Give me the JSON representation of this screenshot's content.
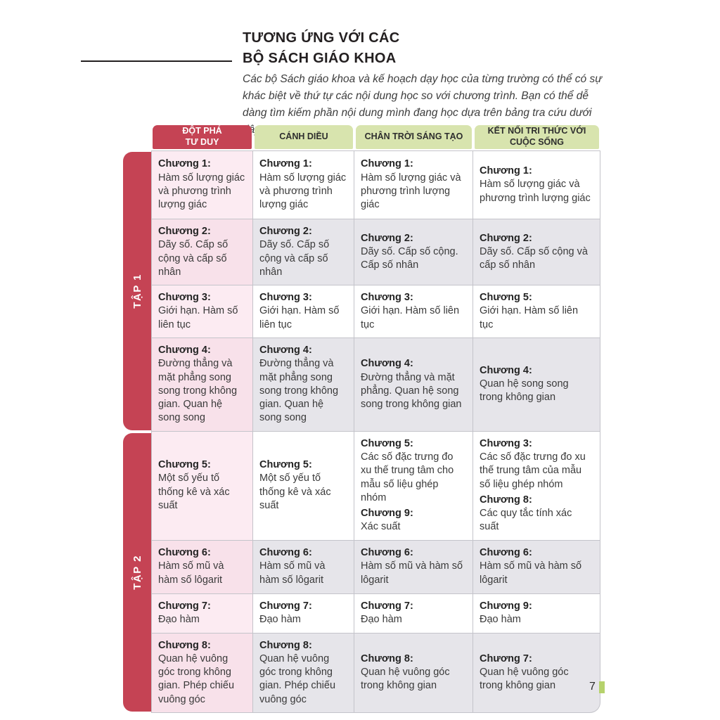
{
  "page": {
    "title": "TƯƠNG ỨNG VỚI CÁC\nBỘ SÁCH GIÁO KHOA",
    "intro": "Các bộ Sách giáo khoa và kế hoạch dạy học của từng trường có thể có sự khác biệt về thứ tự các nội dung học so với chương trình. Bạn có thể dễ dàng tìm kiếm phần nội dung mình đang học dựa trên bảng tra cứu dưới đây.",
    "page_number": "7"
  },
  "colors": {
    "accent_red": "#c54354",
    "header_green": "#d8e4ae",
    "cell_gray": "#e6e5ea",
    "cell_pink": "#f8e1ea",
    "cell_pink_light": "#fcebf2",
    "line": "#c4c4ca",
    "page_marker_green": "#b6d26c"
  },
  "table": {
    "columns": [
      {
        "id": "dot-pha-tu-duy",
        "label": "ĐỘT PHÁ\nTƯ DUY"
      },
      {
        "id": "canh-dieu",
        "label": "CÁNH DIỀU"
      },
      {
        "id": "chan-troi-sang-tao",
        "label": "CHÂN TRỜI SÁNG TẠO"
      },
      {
        "id": "ket-noi-tri-thuc",
        "label": "KẾT NỐI TRI THỨC VỚI\nCUỘC SỐNG"
      }
    ],
    "sections": [
      {
        "id": "tap-1",
        "label": "TẬP 1",
        "rows": [
          {
            "cells": [
              {
                "entries": [
                  {
                    "chapter": "Chương 1:",
                    "text": "Hàm số lượng giác và phương trình lượng giác"
                  }
                ]
              },
              {
                "entries": [
                  {
                    "chapter": "Chương 1:",
                    "text": "Hàm số lượng giác và phương trình lượng giác"
                  }
                ]
              },
              {
                "entries": [
                  {
                    "chapter": "Chương 1:",
                    "text": "Hàm số lượng giác và phương trình lượng giác"
                  }
                ]
              },
              {
                "entries": [
                  {
                    "chapter": "Chương 1:",
                    "text": "Hàm số lượng giác và phương trình lượng giác"
                  }
                ]
              }
            ]
          },
          {
            "cells": [
              {
                "entries": [
                  {
                    "chapter": "Chương 2:",
                    "text": "Dãy số. Cấp số cộng và cấp số nhân"
                  }
                ]
              },
              {
                "entries": [
                  {
                    "chapter": "Chương 2:",
                    "text": "Dãy số. Cấp số cộng và cấp số nhân"
                  }
                ]
              },
              {
                "entries": [
                  {
                    "chapter": "Chương 2:",
                    "text": "Dãy số. Cấp số cộng. Cấp số nhân"
                  }
                ]
              },
              {
                "entries": [
                  {
                    "chapter": "Chương 2:",
                    "text": "Dãy số. Cấp số cộng và cấp số nhân"
                  }
                ]
              }
            ]
          },
          {
            "cells": [
              {
                "entries": [
                  {
                    "chapter": "Chương 3:",
                    "text": "Giới hạn. Hàm số liên tục"
                  }
                ]
              },
              {
                "entries": [
                  {
                    "chapter": "Chương 3:",
                    "text": "Giới hạn. Hàm số liên tục"
                  }
                ]
              },
              {
                "entries": [
                  {
                    "chapter": "Chương 3:",
                    "text": "Giới hạn. Hàm số liên tục"
                  }
                ]
              },
              {
                "entries": [
                  {
                    "chapter": "Chương 5:",
                    "text": "Giới hạn. Hàm số liên tục"
                  }
                ]
              }
            ]
          },
          {
            "cells": [
              {
                "entries": [
                  {
                    "chapter": "Chương 4:",
                    "text": "Đường thẳng và mặt phẳng song song trong không gian. Quan hệ song song"
                  }
                ]
              },
              {
                "entries": [
                  {
                    "chapter": "Chương 4:",
                    "text": "Đường thẳng và mặt phẳng song song trong không gian. Quan hệ song song"
                  }
                ]
              },
              {
                "entries": [
                  {
                    "chapter": "Chương 4:",
                    "text": "Đường thẳng và mặt phẳng. Quan hệ song song trong không gian"
                  }
                ]
              },
              {
                "entries": [
                  {
                    "chapter": "Chương 4:",
                    "text": "Quan hệ song song trong không gian"
                  }
                ]
              }
            ]
          }
        ]
      },
      {
        "id": "tap-2",
        "label": "TẬP 2",
        "rows": [
          {
            "cells": [
              {
                "entries": [
                  {
                    "chapter": "Chương 5:",
                    "text": "Một số yếu tố thống kê và xác suất"
                  }
                ]
              },
              {
                "entries": [
                  {
                    "chapter": "Chương 5:",
                    "text": "Một số yếu tố thống kê và xác suất"
                  }
                ]
              },
              {
                "entries": [
                  {
                    "chapter": "Chương 5:",
                    "text": "Các số đặc trưng đo xu thế trung tâm cho mẫu số liệu ghép nhóm"
                  },
                  {
                    "chapter": "Chương 9:",
                    "text": "Xác suất"
                  }
                ]
              },
              {
                "entries": [
                  {
                    "chapter": "Chương 3:",
                    "text": "Các số đặc trưng đo xu thế trung tâm của mẫu số liệu ghép nhóm"
                  },
                  {
                    "chapter": "Chương 8:",
                    "text": "Các quy tắc tính xác suất"
                  }
                ]
              }
            ]
          },
          {
            "cells": [
              {
                "entries": [
                  {
                    "chapter": "Chương 6:",
                    "text": "Hàm số mũ và hàm số lôgarit"
                  }
                ]
              },
              {
                "entries": [
                  {
                    "chapter": "Chương 6:",
                    "text": "Hàm số mũ và hàm số lôgarit"
                  }
                ]
              },
              {
                "entries": [
                  {
                    "chapter": "Chương 6:",
                    "text": "Hàm số mũ và hàm số lôgarit"
                  }
                ]
              },
              {
                "entries": [
                  {
                    "chapter": "Chương 6:",
                    "text": "Hàm số mũ và hàm số lôgarit"
                  }
                ]
              }
            ]
          },
          {
            "cells": [
              {
                "entries": [
                  {
                    "chapter": "Chương 7:",
                    "text": "Đạo hàm"
                  }
                ]
              },
              {
                "entries": [
                  {
                    "chapter": "Chương 7:",
                    "text": "Đạo hàm"
                  }
                ]
              },
              {
                "entries": [
                  {
                    "chapter": "Chương 7:",
                    "text": "Đạo hàm"
                  }
                ]
              },
              {
                "entries": [
                  {
                    "chapter": "Chương 9:",
                    "text": "Đạo hàm"
                  }
                ]
              }
            ]
          },
          {
            "cells": [
              {
                "entries": [
                  {
                    "chapter": "Chương 8:",
                    "text": "Quan hệ vuông góc trong không gian. Phép chiếu vuông góc"
                  }
                ]
              },
              {
                "entries": [
                  {
                    "chapter": "Chương 8:",
                    "text": "Quan hệ vuông góc trong không gian. Phép chiếu vuông góc"
                  }
                ]
              },
              {
                "entries": [
                  {
                    "chapter": "Chương 8:",
                    "text": "Quan hệ vuông góc trong không gian"
                  }
                ]
              },
              {
                "entries": [
                  {
                    "chapter": "Chương 7:",
                    "text": "Quan hệ vuông góc trong không gian"
                  }
                ]
              }
            ]
          }
        ]
      }
    ]
  }
}
